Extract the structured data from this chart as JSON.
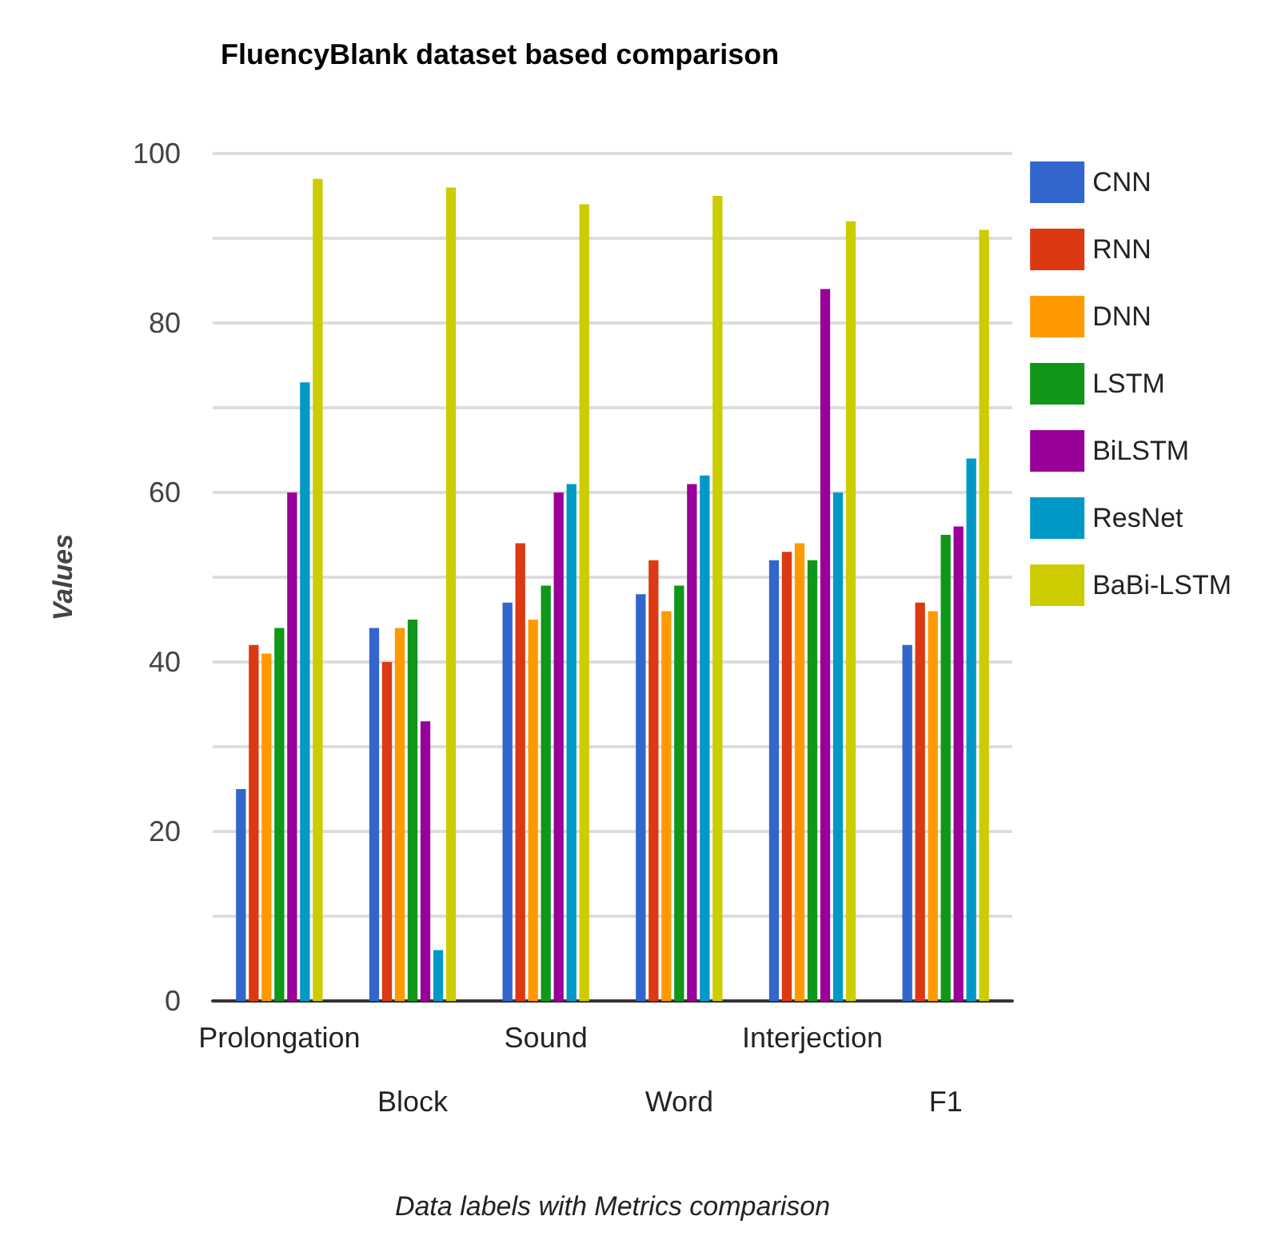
{
  "chart_data": {
    "type": "bar",
    "title": "FluencyBlank dataset based comparison",
    "xlabel": "Data labels with Metrics comparison",
    "ylabel": "Values",
    "categories": [
      "Prolongation",
      "Block",
      "Sound",
      "Word",
      "Interjection",
      "F1"
    ],
    "series": [
      {
        "name": "CNN",
        "color": "#3366cc",
        "values": [
          25,
          44,
          47,
          48,
          52,
          42
        ]
      },
      {
        "name": "RNN",
        "color": "#dc3912",
        "values": [
          42,
          40,
          54,
          52,
          53,
          47
        ]
      },
      {
        "name": "DNN",
        "color": "#ff9900",
        "values": [
          41,
          44,
          45,
          46,
          54,
          46
        ]
      },
      {
        "name": "LSTM",
        "color": "#109618",
        "values": [
          44,
          45,
          49,
          49,
          52,
          55
        ]
      },
      {
        "name": "BiLSTM",
        "color": "#990099",
        "values": [
          60,
          33,
          60,
          61,
          84,
          56
        ]
      },
      {
        "name": "ResNet",
        "color": "#0099c6",
        "values": [
          73,
          6,
          61,
          62,
          60,
          64
        ]
      },
      {
        "name": "BaBi-LSTM",
        "color": "#cccc00",
        "values": [
          97,
          96,
          94,
          95,
          92,
          91
        ]
      }
    ],
    "ylim": [
      0,
      100
    ],
    "yticks": [
      0,
      {
        "value": 10,
        "label": null
      },
      20,
      {
        "value": 30,
        "label": null
      },
      40,
      {
        "value": 50,
        "label": null
      },
      60,
      {
        "value": 70,
        "label": null
      },
      80,
      {
        "value": 90,
        "label": null
      },
      100
    ],
    "grid": "y",
    "legend": "right"
  }
}
